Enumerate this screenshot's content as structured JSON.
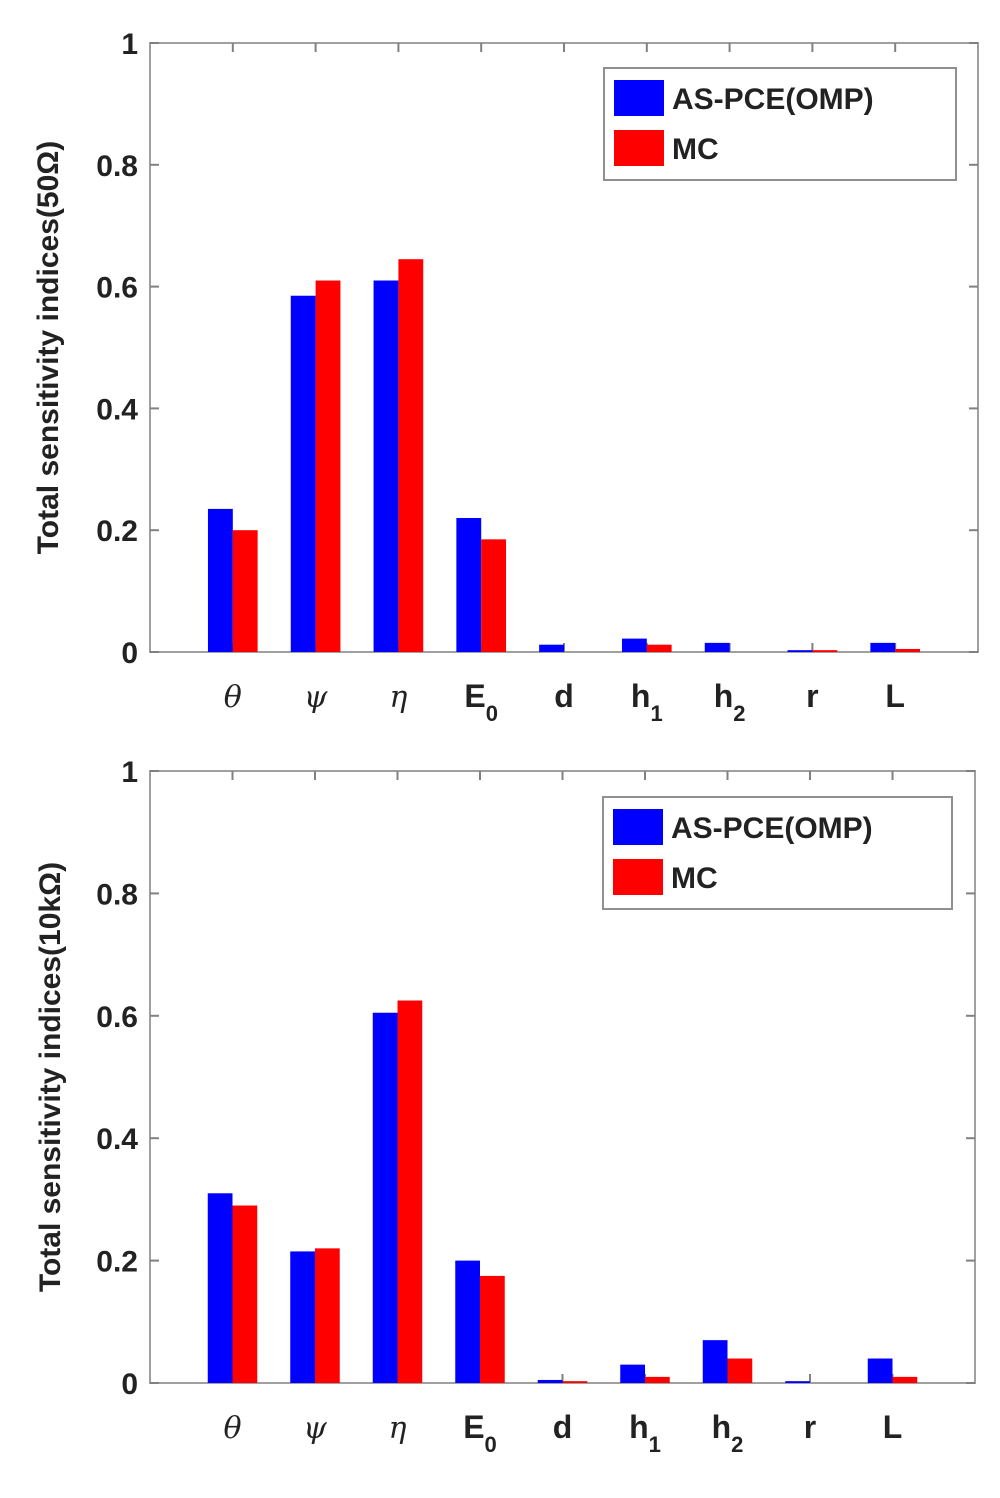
{
  "chart_data": [
    {
      "type": "bar",
      "ylabel": "Total sensitivity indices(50Ω)",
      "ylim": [
        0,
        1
      ],
      "yticks": [
        "0",
        "0.2",
        "0.4",
        "0.6",
        "0.8",
        "1"
      ],
      "categories": [
        {
          "base": "θ",
          "sub": "",
          "greek": true
        },
        {
          "base": "ψ",
          "sub": "",
          "greek": true
        },
        {
          "base": "η",
          "sub": "",
          "greek": true
        },
        {
          "base": "E",
          "sub": "0",
          "greek": false
        },
        {
          "base": "d",
          "sub": "",
          "greek": false
        },
        {
          "base": "h",
          "sub": "1",
          "greek": false
        },
        {
          "base": "h",
          "sub": "2",
          "greek": false
        },
        {
          "base": "r",
          "sub": "",
          "greek": false
        },
        {
          "base": "L",
          "sub": "",
          "greek": false
        }
      ],
      "series": [
        {
          "name": "AS-PCE(OMP)",
          "color": "#0000ff",
          "values": [
            0.235,
            0.585,
            0.61,
            0.22,
            0.012,
            0.022,
            0.015,
            0.003,
            0.015
          ]
        },
        {
          "name": "MC",
          "color": "#ff0000",
          "values": [
            0.2,
            0.61,
            0.645,
            0.185,
            0.0,
            0.012,
            0.0,
            0.003,
            0.005
          ]
        }
      ],
      "legend_position": "top-right"
    },
    {
      "type": "bar",
      "ylabel": "Total sensitivity indices(10kΩ)",
      "ylim": [
        0,
        1
      ],
      "yticks": [
        "0",
        "0.2",
        "0.4",
        "0.6",
        "0.8",
        "1"
      ],
      "categories": [
        {
          "base": "θ",
          "sub": "",
          "greek": true
        },
        {
          "base": "ψ",
          "sub": "",
          "greek": true
        },
        {
          "base": "η",
          "sub": "",
          "greek": true
        },
        {
          "base": "E",
          "sub": "0",
          "greek": false
        },
        {
          "base": "d",
          "sub": "",
          "greek": false
        },
        {
          "base": "h",
          "sub": "1",
          "greek": false
        },
        {
          "base": "h",
          "sub": "2",
          "greek": false
        },
        {
          "base": "r",
          "sub": "",
          "greek": false
        },
        {
          "base": "L",
          "sub": "",
          "greek": false
        }
      ],
      "series": [
        {
          "name": "AS-PCE(OMP)",
          "color": "#0000ff",
          "values": [
            0.31,
            0.215,
            0.605,
            0.2,
            0.005,
            0.03,
            0.07,
            0.003,
            0.04
          ]
        },
        {
          "name": "MC",
          "color": "#ff0000",
          "values": [
            0.29,
            0.22,
            0.625,
            0.175,
            0.003,
            0.01,
            0.04,
            0.0,
            0.01
          ]
        }
      ],
      "legend_position": "top-right"
    }
  ]
}
